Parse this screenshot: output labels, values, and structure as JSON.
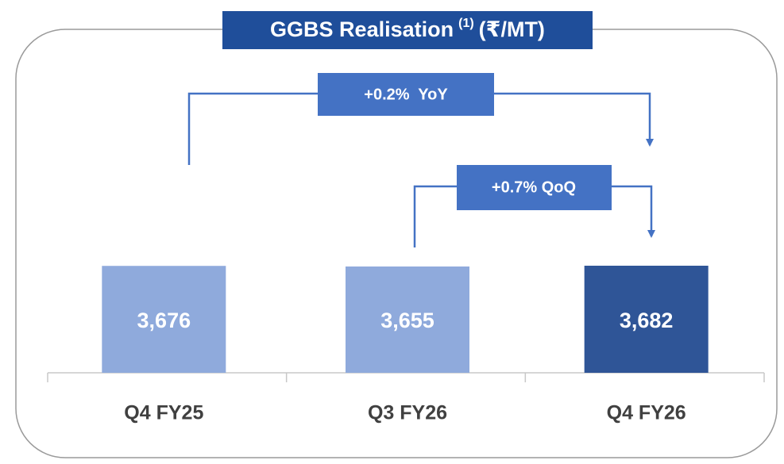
{
  "chart_data": {
    "type": "bar",
    "title": "GGBS Realisation",
    "title_note": "(1)",
    "unit": "(₹/MT)",
    "categories": [
      "Q4 FY25",
      "Q3 FY26",
      "Q4 FY26"
    ],
    "values": [
      3676,
      3655,
      3682
    ],
    "value_labels": [
      "3,676",
      "3,655",
      "3,682"
    ],
    "colors": [
      "#8faadc",
      "#8faadc",
      "#2f5597"
    ],
    "annotations": [
      "+0.2%  YoY",
      "+0.7% QoQ"
    ]
  }
}
